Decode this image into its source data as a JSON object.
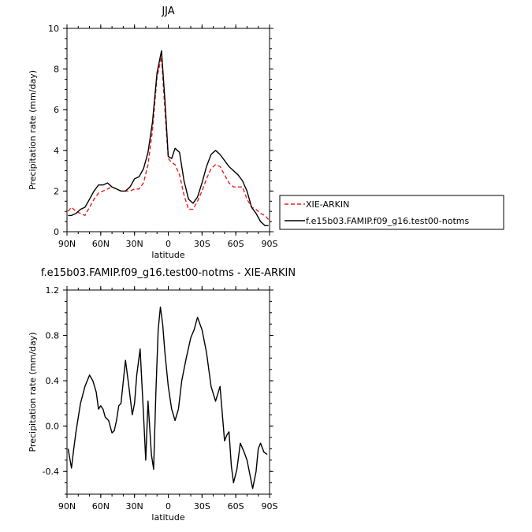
{
  "chart_data": [
    {
      "type": "line",
      "title": "JJA",
      "xlabel": "latitude",
      "ylabel": "Precipitation rate (mm/day)",
      "xlim": [
        -90,
        90
      ],
      "ylim": [
        0,
        10
      ],
      "x_ticks": [
        -90,
        -60,
        -30,
        0,
        30,
        60,
        90
      ],
      "x_tick_labels": [
        "90N",
        "60N",
        "30N",
        "0",
        "30S",
        "60S",
        "90S"
      ],
      "y_ticks": [
        0,
        2,
        4,
        6,
        8,
        10
      ],
      "y_tick_labels": [
        "0",
        "2",
        "4",
        "6",
        "8",
        "10"
      ],
      "legend_position": "right",
      "series": [
        {
          "name": "XIE-ARKIN",
          "color": "#e8201b",
          "dash": "dashed",
          "x": [
            -89,
            -86,
            -82,
            -78,
            -74,
            -70,
            -66,
            -62,
            -58,
            -54,
            -50,
            -46,
            -42,
            -38,
            -34,
            -30,
            -26,
            -22,
            -18,
            -14,
            -10,
            -6,
            -3,
            0,
            3,
            6,
            10,
            14,
            18,
            22,
            26,
            30,
            34,
            38,
            42,
            46,
            50,
            54,
            58,
            62,
            66,
            70,
            74,
            78,
            82,
            86,
            89
          ],
          "y": [
            1.0,
            1.2,
            1.0,
            0.9,
            0.8,
            1.2,
            1.6,
            1.9,
            2.0,
            2.1,
            2.2,
            2.1,
            2.0,
            2.0,
            2.0,
            2.1,
            2.1,
            2.4,
            3.3,
            5.0,
            7.6,
            8.6,
            6.0,
            3.6,
            3.4,
            3.3,
            2.8,
            1.8,
            1.1,
            1.1,
            1.5,
            2.0,
            2.6,
            3.1,
            3.3,
            3.2,
            2.8,
            2.4,
            2.2,
            2.2,
            2.2,
            1.6,
            1.2,
            1.1,
            0.9,
            0.8,
            0.6
          ]
        },
        {
          "name": "f.e15b03.FAMIP.f09_g16.test00-notms",
          "color": "#000000",
          "dash": "solid",
          "x": [
            -89,
            -86,
            -82,
            -78,
            -74,
            -70,
            -66,
            -62,
            -58,
            -54,
            -50,
            -46,
            -42,
            -38,
            -34,
            -30,
            -26,
            -22,
            -18,
            -14,
            -10,
            -6,
            -3,
            0,
            3,
            6,
            10,
            14,
            18,
            22,
            26,
            30,
            34,
            38,
            42,
            46,
            50,
            54,
            58,
            62,
            66,
            70,
            74,
            78,
            82,
            86,
            89
          ],
          "y": [
            0.8,
            0.8,
            0.9,
            1.1,
            1.2,
            1.6,
            2.0,
            2.3,
            2.3,
            2.4,
            2.2,
            2.1,
            2.0,
            2.0,
            2.2,
            2.6,
            2.7,
            3.1,
            3.9,
            5.4,
            7.8,
            8.9,
            6.5,
            3.7,
            3.6,
            4.1,
            3.9,
            2.5,
            1.6,
            1.4,
            1.7,
            2.4,
            3.2,
            3.8,
            4.0,
            3.8,
            3.5,
            3.2,
            3.0,
            2.8,
            2.5,
            2.0,
            1.2,
            0.9,
            0.5,
            0.3,
            0.3
          ]
        }
      ]
    },
    {
      "type": "line",
      "title": "f.e15b03.FAMIP.f09_g16.test00-notms - XIE-ARKIN",
      "xlabel": "latitude",
      "ylabel": "Precipitation rate (mm/day)",
      "xlim": [
        -90,
        90
      ],
      "ylim": [
        -0.6,
        1.2
      ],
      "x_ticks": [
        -90,
        -60,
        -30,
        0,
        30,
        60,
        90
      ],
      "x_tick_labels": [
        "90N",
        "60N",
        "30N",
        "0",
        "30S",
        "60S",
        "90S"
      ],
      "y_ticks": [
        -0.4,
        0.0,
        0.4,
        0.8,
        1.2
      ],
      "y_tick_labels": [
        "-0.4",
        "0.0",
        "0.4",
        "0.8",
        "1.2"
      ],
      "series": [
        {
          "color": "#000000",
          "dash": "solid",
          "x": [
            -89,
            -86,
            -84,
            -82,
            -78,
            -74,
            -70,
            -67,
            -64,
            -62,
            -60,
            -58,
            -56,
            -53,
            -50,
            -48,
            -46,
            -44,
            -42,
            -38,
            -35,
            -32,
            -30,
            -28,
            -25,
            -22,
            -20,
            -18,
            -15,
            -13,
            -11,
            -9,
            -7,
            -5,
            -3,
            0,
            3,
            6,
            9,
            12,
            16,
            20,
            23,
            26,
            30,
            34,
            38,
            42,
            46,
            50,
            52,
            54,
            56,
            58,
            61,
            64,
            67,
            70,
            73,
            75,
            78,
            80,
            82,
            85,
            88
          ],
          "y": [
            -0.2,
            -0.37,
            -0.2,
            -0.05,
            0.2,
            0.35,
            0.45,
            0.4,
            0.3,
            0.15,
            0.18,
            0.15,
            0.08,
            0.05,
            -0.06,
            -0.04,
            0.05,
            0.18,
            0.2,
            0.58,
            0.35,
            0.1,
            0.2,
            0.45,
            0.68,
            0.1,
            -0.3,
            0.22,
            -0.25,
            -0.38,
            0.3,
            0.85,
            1.05,
            0.9,
            0.65,
            0.35,
            0.15,
            0.05,
            0.15,
            0.4,
            0.6,
            0.78,
            0.85,
            0.96,
            0.85,
            0.65,
            0.35,
            0.22,
            0.35,
            -0.13,
            -0.08,
            -0.05,
            -0.35,
            -0.5,
            -0.38,
            -0.15,
            -0.22,
            -0.3,
            -0.45,
            -0.55,
            -0.4,
            -0.2,
            -0.15,
            -0.23,
            -0.25
          ]
        }
      ]
    }
  ]
}
